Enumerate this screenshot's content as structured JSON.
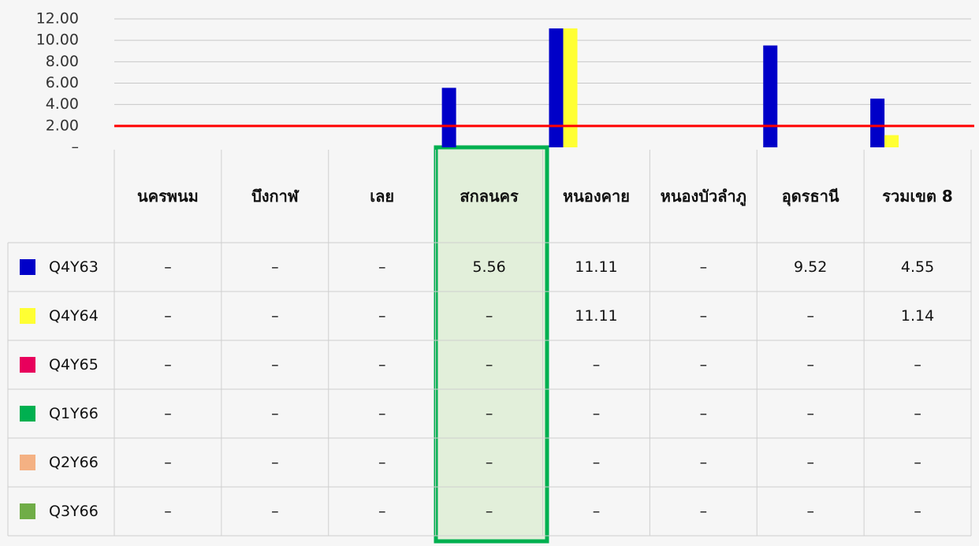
{
  "chart_data": {
    "type": "bar",
    "categories": [
      "นครพนม",
      "บึงกาฬ",
      "เลย",
      "สกลนคร",
      "หนองคาย",
      "หนองบัวลำภู",
      "อุดรธานี",
      "รวมเขต 8"
    ],
    "series": [
      {
        "name": "Q4Y63",
        "color": "#0000c8",
        "values": [
          0,
          0,
          0,
          5.56,
          11.11,
          0,
          9.52,
          4.55
        ],
        "value_labels": [
          "–",
          "–",
          "–",
          "5.56",
          "11.11",
          "–",
          "9.52",
          "4.55"
        ]
      },
      {
        "name": "Q4Y64",
        "color": "#ffff33",
        "values": [
          0,
          0,
          0,
          0,
          11.11,
          0,
          0,
          1.14
        ],
        "value_labels": [
          "–",
          "–",
          "–",
          "–",
          "11.11",
          "–",
          "–",
          "1.14"
        ]
      },
      {
        "name": "Q4Y65",
        "color": "#e8005c",
        "values": [
          0,
          0,
          0,
          0,
          0,
          0,
          0,
          0
        ],
        "value_labels": [
          "–",
          "–",
          "–",
          "–",
          "–",
          "–",
          "–",
          "–"
        ]
      },
      {
        "name": "Q1Y66",
        "color": "#00b050",
        "values": [
          0,
          0,
          0,
          0,
          0,
          0,
          0,
          0
        ],
        "value_labels": [
          "–",
          "–",
          "–",
          "–",
          "–",
          "–",
          "–",
          "–"
        ]
      },
      {
        "name": "Q2Y66",
        "color": "#f4b183",
        "values": [
          0,
          0,
          0,
          0,
          0,
          0,
          0,
          0
        ],
        "value_labels": [
          "–",
          "–",
          "–",
          "–",
          "–",
          "–",
          "–",
          "–"
        ]
      },
      {
        "name": "Q3Y66",
        "color": "#70ad47",
        "values": [
          0,
          0,
          0,
          0,
          0,
          0,
          0,
          0
        ],
        "value_labels": [
          "–",
          "–",
          "–",
          "–",
          "–",
          "–",
          "–",
          "–"
        ]
      }
    ],
    "target_line": {
      "value": 2,
      "color": "#ff0000"
    },
    "ylim": [
      0,
      12
    ],
    "yticks": [
      {
        "value": 0,
        "label": "–"
      },
      {
        "value": 2,
        "label": "2.00"
      },
      {
        "value": 4,
        "label": "4.00"
      },
      {
        "value": 6,
        "label": "6.00"
      },
      {
        "value": 8,
        "label": "8.00"
      },
      {
        "value": 10,
        "label": "10.00"
      },
      {
        "value": 12,
        "label": "12.00"
      }
    ],
    "grid": true
  }
}
